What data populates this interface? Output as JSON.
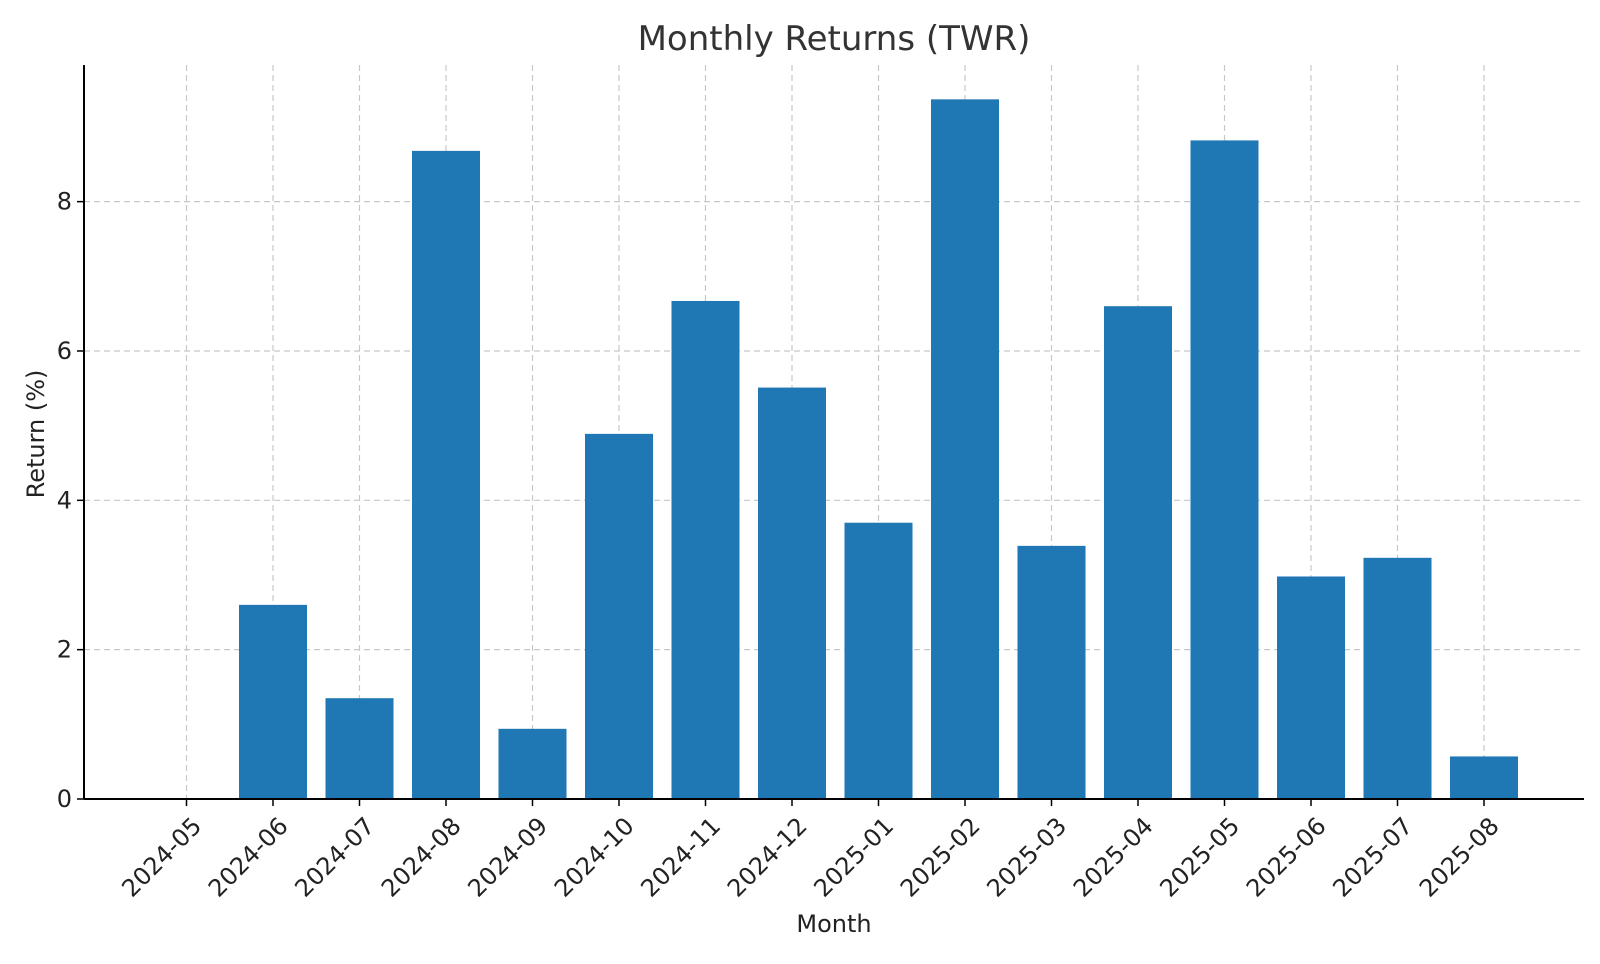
{
  "chart_data": {
    "type": "bar",
    "title": "Monthly Returns (TWR)",
    "xlabel": "Month",
    "ylabel": "Return (%)",
    "categories": [
      "2024-05",
      "2024-06",
      "2024-07",
      "2024-08",
      "2024-09",
      "2024-10",
      "2024-11",
      "2024-12",
      "2025-01",
      "2025-02",
      "2025-03",
      "2025-04",
      "2025-05",
      "2025-06",
      "2025-07",
      "2025-08"
    ],
    "values": [
      0,
      2.6,
      1.35,
      8.68,
      0.94,
      4.89,
      6.67,
      5.51,
      3.7,
      9.37,
      3.39,
      6.6,
      8.82,
      2.98,
      3.23,
      0.57
    ],
    "yticks": [
      0,
      2,
      4,
      6,
      8
    ],
    "ylim": [
      0,
      9.83
    ],
    "grid": true,
    "colors": {
      "bar": "#1f77b4"
    }
  }
}
